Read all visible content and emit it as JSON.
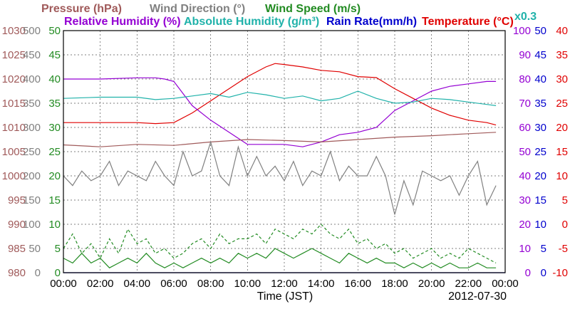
{
  "chart_data": {
    "type": "line",
    "date_label": "2012-07-30",
    "xlabel": "Time (JST)",
    "x_ticks": [
      "00:00",
      "02:00",
      "04:00",
      "06:00",
      "08:00",
      "10:00",
      "12:00",
      "14:00",
      "16:00",
      "18:00",
      "20:00",
      "22:00",
      "00:00"
    ],
    "xlim_hours": [
      0,
      24
    ],
    "grid": true,
    "scale_note": "x0.3",
    "axes": [
      {
        "name": "Pressure (hPa)",
        "color": "#a05a5a",
        "side": "left",
        "min": 980,
        "max": 1030,
        "ticks": [
          "980",
          "985",
          "990",
          "995",
          "1000",
          "1005",
          "1010",
          "1015",
          "1020",
          "1025",
          "1030"
        ]
      },
      {
        "name": "Wind Direction (°)",
        "color": "#808080",
        "side": "left",
        "min": 0,
        "max": 500,
        "ticks": [
          "0",
          "50",
          "100",
          "150",
          "200",
          "250",
          "300",
          "350",
          "400",
          "450",
          "500"
        ]
      },
      {
        "name": "Wind Speed (m/s)",
        "color": "#228b22",
        "side": "left",
        "min": 0,
        "max": 50,
        "ticks": [
          "0",
          "5",
          "10",
          "15",
          "20",
          "25",
          "30",
          "35",
          "40",
          "45",
          "50"
        ]
      },
      {
        "name": "Humidity (%)",
        "color": "#9400d3",
        "side": "right",
        "min": 0,
        "max": 100,
        "ticks": [
          "0",
          "10",
          "20",
          "30",
          "40",
          "50",
          "60",
          "70",
          "80",
          "90",
          "100"
        ]
      },
      {
        "name": "Rain Rate (mm/h)",
        "color": "#0000cd",
        "side": "right",
        "min": 0,
        "max": 50,
        "ticks": [
          "0",
          "5",
          "10",
          "15",
          "20",
          "25",
          "30",
          "35",
          "40",
          "45",
          "50"
        ]
      },
      {
        "name": "Temperature (°C)",
        "color": "#e00000",
        "side": "right",
        "min": -10,
        "max": 40,
        "ticks": [
          "-10",
          "-5",
          "0",
          "5",
          "10",
          "15",
          "20",
          "25",
          "30",
          "35",
          "40"
        ]
      }
    ],
    "legend": [
      {
        "label": "Pressure (hPa)",
        "color": "#a05a5a"
      },
      {
        "label": "Wind Direction (°)",
        "color": "#808080"
      },
      {
        "label": "Wind Speed (m/s)",
        "color": "#228b22"
      },
      {
        "label": "Relative Humidity (%)",
        "color": "#9400d3"
      },
      {
        "label": "Absolute Humidity (g/m³)",
        "color": "#20b2aa"
      },
      {
        "label": "Rain Rate(mm/h)",
        "color": "#0000cd"
      },
      {
        "label": "Temperature (°C)",
        "color": "#e00000"
      }
    ],
    "series": [
      {
        "name": "Temperature (°C)",
        "axis": 5,
        "color": "#e00000",
        "x": [
          0,
          2,
          4,
          5,
          6,
          7,
          8,
          9,
          10,
          11,
          11.5,
          12,
          13,
          14,
          15,
          16,
          17,
          18,
          19,
          20,
          21,
          22,
          23,
          23.5
        ],
        "y": [
          21,
          21,
          21,
          20.8,
          21,
          23,
          25.5,
          28,
          30.5,
          32.5,
          33.2,
          33,
          32.5,
          31.8,
          31.5,
          30.5,
          30.3,
          28,
          26,
          24,
          22.5,
          21.5,
          21,
          20.5
        ]
      },
      {
        "name": "Relative Humidity (%)",
        "axis": 3,
        "color": "#9400d3",
        "x": [
          0,
          2,
          4,
          5,
          5.5,
          6,
          7,
          8,
          9,
          10,
          11,
          12,
          13,
          14,
          15,
          16,
          17,
          18,
          19,
          20,
          21,
          22,
          23,
          23.5
        ],
        "y": [
          80,
          80,
          80.5,
          80.5,
          80,
          79,
          69,
          63,
          58,
          53,
          53,
          53,
          52,
          54,
          57,
          58,
          60,
          67,
          71,
          75,
          77,
          78,
          79,
          79
        ]
      },
      {
        "name": "Absolute Humidity (g/m³)",
        "axis": 3,
        "color": "#20b2aa",
        "x": [
          0,
          2,
          4,
          5,
          6,
          7,
          8,
          9,
          10,
          11,
          12,
          13,
          14,
          15,
          16,
          17,
          18,
          19,
          20,
          21,
          22,
          23,
          23.5
        ],
        "y": [
          72,
          72.5,
          72.5,
          71.5,
          72,
          73,
          74,
          72.5,
          74.5,
          73.5,
          72,
          73,
          71,
          72,
          75,
          72,
          70,
          70.5,
          72,
          71.5,
          70.5,
          69.5,
          69
        ]
      },
      {
        "name": "Pressure (hPa)",
        "axis": 0,
        "color": "#a05a5a",
        "x": [
          0,
          2,
          4,
          6,
          8,
          10,
          12,
          14,
          16,
          18,
          20,
          22,
          23.5
        ],
        "y": [
          1006.4,
          1006,
          1006.5,
          1006.3,
          1007,
          1007.5,
          1007.3,
          1007,
          1007.5,
          1008,
          1008.3,
          1008.7,
          1009
        ]
      },
      {
        "name": "Wind Direction (°)",
        "axis": 1,
        "color": "#808080",
        "x": [
          0,
          0.5,
          1,
          1.5,
          2,
          2.5,
          3,
          3.5,
          4,
          4.5,
          5,
          5.5,
          6,
          6.5,
          7,
          7.5,
          8,
          8.5,
          9,
          9.5,
          10,
          10.5,
          11,
          11.5,
          12,
          12.5,
          13,
          13.5,
          14,
          14.5,
          15,
          15.5,
          16,
          16.5,
          17,
          17.5,
          18,
          18.5,
          19,
          19.5,
          20,
          20.5,
          21,
          21.5,
          22,
          22.5,
          23,
          23.5
        ],
        "y": [
          200,
          180,
          210,
          190,
          200,
          230,
          180,
          210,
          200,
          190,
          230,
          200,
          180,
          250,
          200,
          210,
          270,
          200,
          180,
          260,
          200,
          240,
          200,
          220,
          190,
          230,
          180,
          210,
          200,
          250,
          190,
          220,
          200,
          200,
          240,
          200,
          120,
          190,
          140,
          210,
          200,
          190,
          200,
          160,
          200,
          230,
          140,
          180
        ]
      },
      {
        "name": "Wind Speed (m/s)",
        "axis": 2,
        "color": "#228b22",
        "dash": true,
        "x": [
          0,
          0.5,
          1,
          1.5,
          2,
          2.5,
          3,
          3.5,
          4,
          4.5,
          5,
          5.5,
          6,
          6.5,
          7,
          7.5,
          8,
          8.5,
          9,
          9.5,
          10,
          10.5,
          11,
          11.5,
          12,
          12.5,
          13,
          13.5,
          14,
          14.5,
          15,
          15.5,
          16,
          16.5,
          17,
          17.5,
          18,
          18.5,
          19,
          19.5,
          20,
          20.5,
          21,
          21.5,
          22,
          22.5,
          23,
          23.5
        ],
        "y": [
          5,
          8,
          4,
          6,
          3,
          7,
          4,
          9,
          6,
          7,
          4,
          5,
          3,
          4,
          6,
          7,
          5,
          8,
          6,
          7,
          7,
          8,
          6,
          9,
          8,
          7,
          9,
          8,
          10,
          8,
          7,
          9,
          6,
          7,
          5,
          6,
          4,
          5,
          3,
          4,
          5,
          3,
          4,
          3,
          5,
          4,
          3,
          2
        ]
      },
      {
        "name": "Wind Speed (m/s)",
        "axis": 2,
        "color": "#228b22",
        "dash": false,
        "x": [
          0,
          0.5,
          1,
          1.5,
          2,
          2.5,
          3,
          3.5,
          4,
          4.5,
          5,
          5.5,
          6,
          6.5,
          7,
          7.5,
          8,
          8.5,
          9,
          9.5,
          10,
          10.5,
          11,
          11.5,
          12,
          12.5,
          13,
          13.5,
          14,
          14.5,
          15,
          15.5,
          16,
          16.5,
          17,
          17.5,
          18,
          18.5,
          19,
          19.5,
          20,
          20.5,
          21,
          21.5,
          22,
          22.5,
          23,
          23.5
        ],
        "y": [
          3,
          2,
          4,
          2,
          3,
          1,
          2,
          3,
          2,
          4,
          2,
          1,
          2,
          1,
          2,
          3,
          2,
          3,
          2,
          4,
          3,
          4,
          3,
          5,
          4,
          3,
          4,
          5,
          4,
          3,
          2,
          4,
          3,
          2,
          3,
          2,
          2,
          1,
          2,
          1,
          2,
          1,
          2,
          1,
          1,
          2,
          1,
          1
        ]
      },
      {
        "name": "Rain Rate(mm/h)",
        "axis": 4,
        "color": "#0000cd",
        "x": [
          0,
          24
        ],
        "y": [
          0,
          0
        ]
      }
    ]
  }
}
